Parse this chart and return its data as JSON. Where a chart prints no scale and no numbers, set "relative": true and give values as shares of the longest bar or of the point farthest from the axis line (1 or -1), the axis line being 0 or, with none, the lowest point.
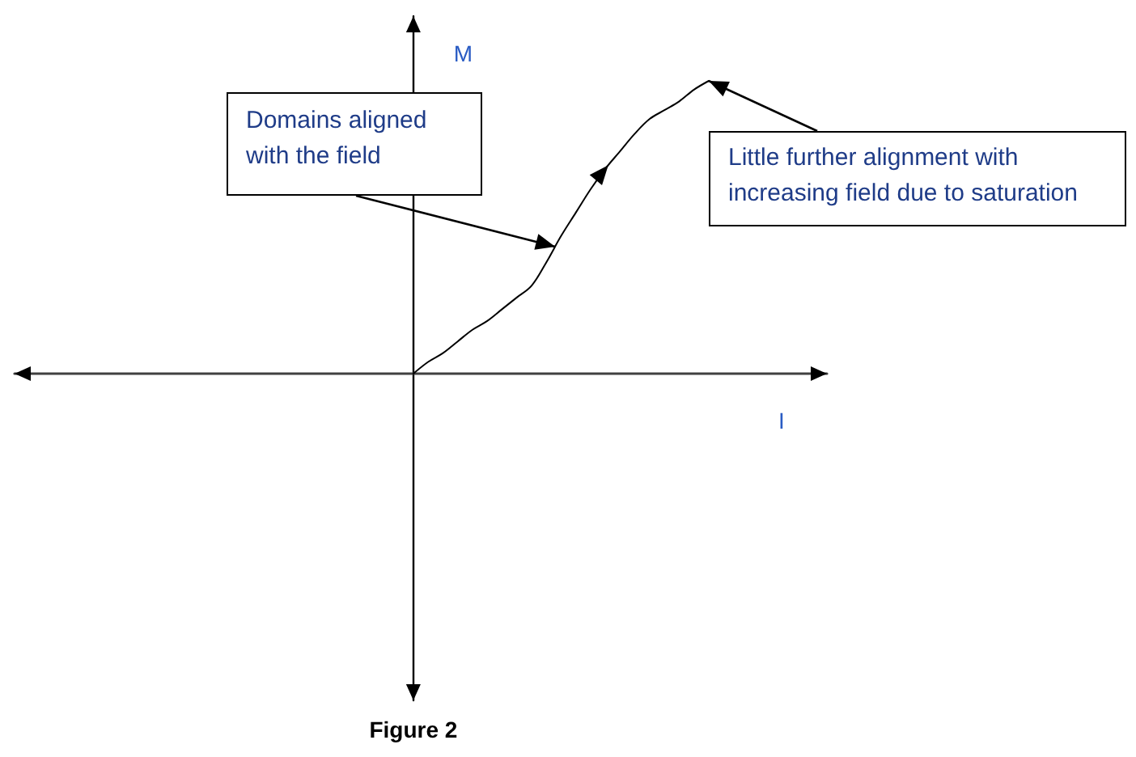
{
  "chart_data": {
    "type": "line",
    "relative": true,
    "categories": [
      null,
      null,
      null,
      null,
      null,
      null,
      null,
      null,
      null,
      null,
      null,
      null,
      null,
      null,
      null,
      null,
      null,
      null,
      null,
      null,
      null,
      null,
      null,
      null,
      null,
      null,
      null,
      null,
      null,
      null,
      null,
      null,
      null,
      null,
      null,
      null,
      null,
      null,
      null,
      null,
      null,
      null,
      null,
      null,
      null,
      null,
      null,
      null,
      null,
      null,
      null,
      null,
      null,
      null,
      null,
      null
    ],
    "values": [
      null,
      null,
      null,
      null,
      null,
      null,
      null,
      null,
      null,
      null,
      null,
      null,
      null,
      null,
      null,
      null,
      null,
      null,
      null,
      null,
      null,
      null,
      null,
      null,
      null,
      null,
      null,
      0,
      0.04,
      0.07,
      0.11,
      0.15,
      0.18,
      0.22,
      0.26,
      0.3,
      0.38,
      0.47,
      0.55,
      0.63,
      0.7,
      0.76,
      0.82,
      0.87,
      0.9,
      0.93,
      0.97,
      1,
      null,
      null,
      null,
      null,
      null,
      null,
      null,
      null
    ],
    "color": "#000000",
    "xlabel": "I",
    "ylabel": "M",
    "marker": "none",
    "annotations": [
      "Domains aligned with the field",
      "Little further alignment with increasing field due to saturation",
      "Figure 2"
    ]
  }
}
